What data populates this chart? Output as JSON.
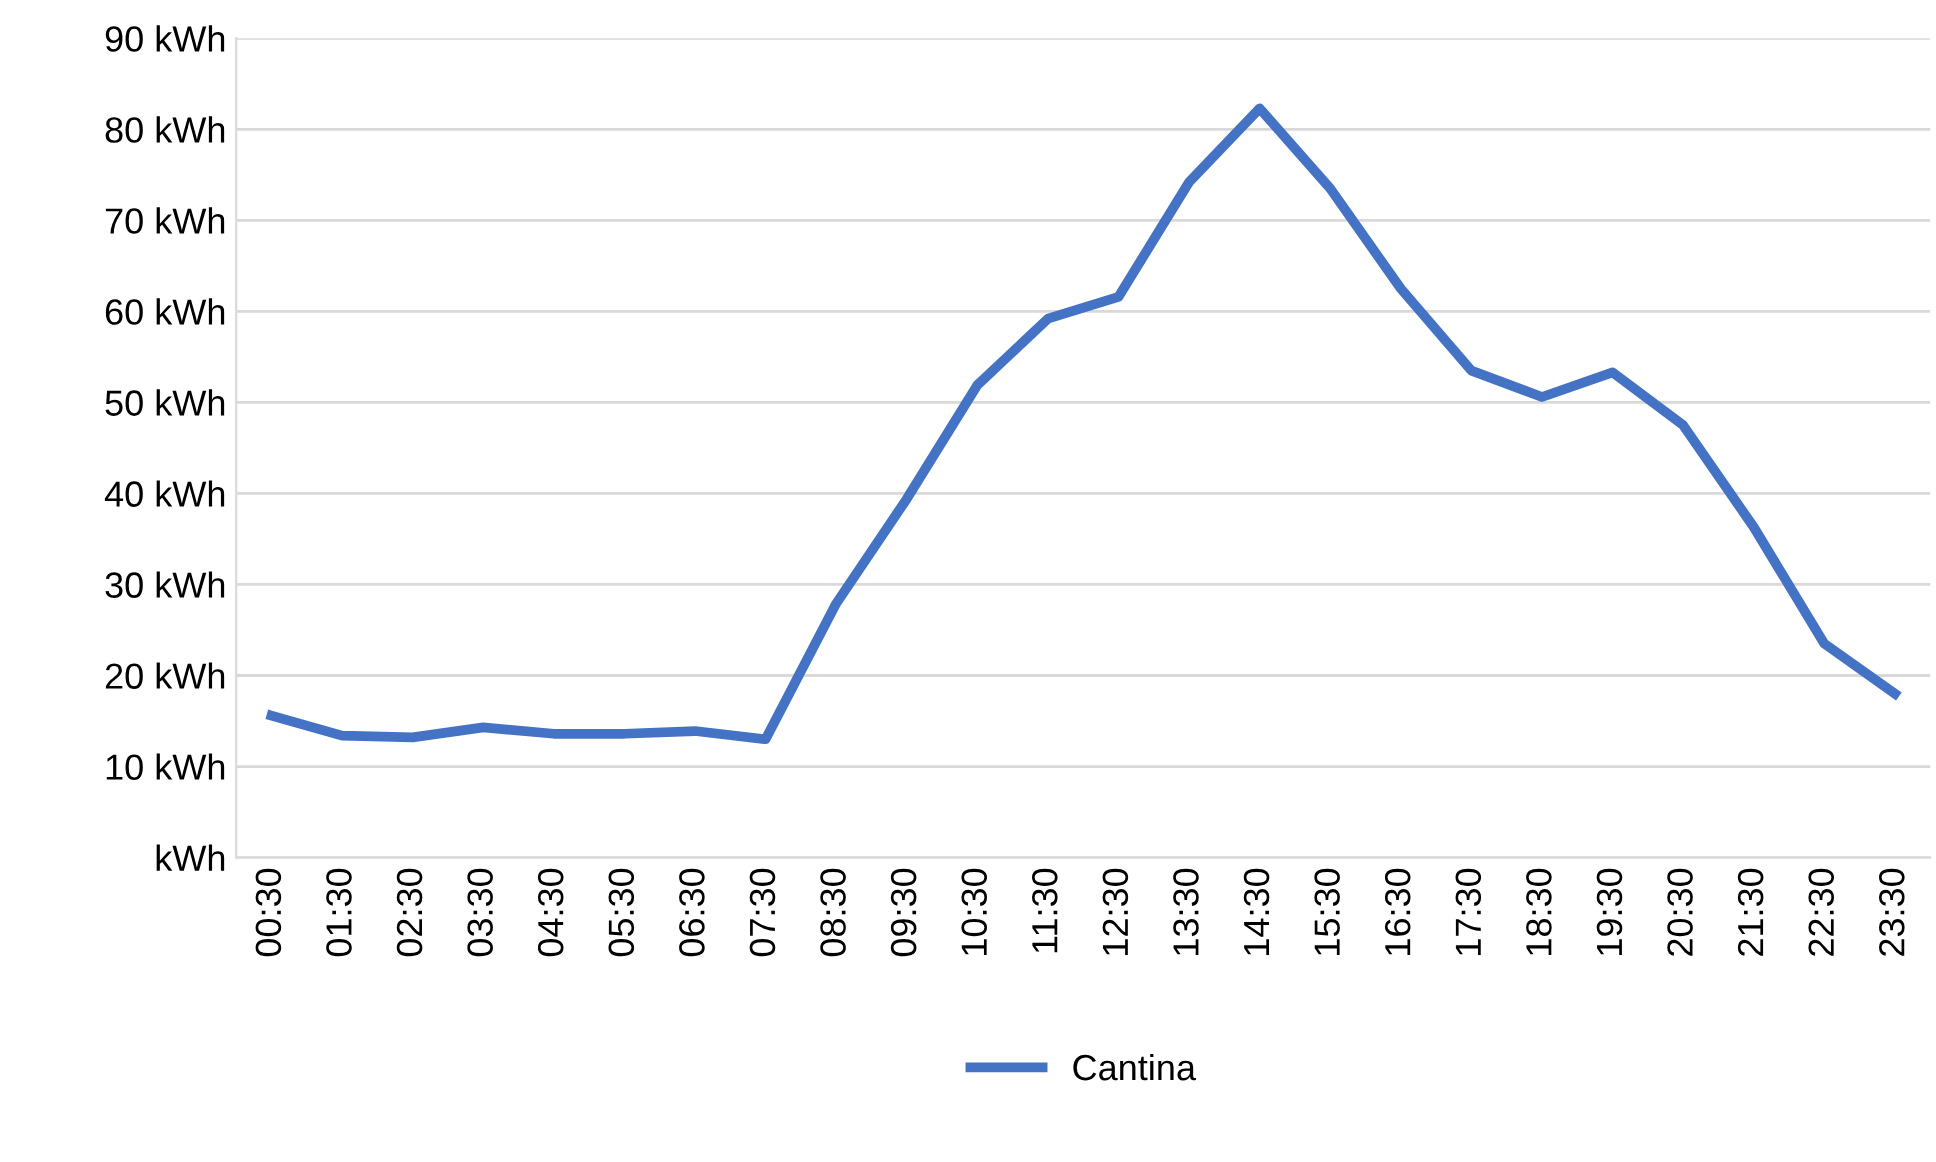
{
  "chart_data": {
    "type": "line",
    "categories": [
      "00:30",
      "01:30",
      "02:30",
      "03:30",
      "04:30",
      "05:30",
      "06:30",
      "07:30",
      "08:30",
      "09:30",
      "10:30",
      "11:30",
      "12:30",
      "13:30",
      "14:30",
      "15:30",
      "16:30",
      "17:30",
      "18:30",
      "19:30",
      "20:30",
      "21:30",
      "22:30",
      "23:30"
    ],
    "series": [
      {
        "name": "Cantina",
        "color": "#4472c4",
        "values": [
          15.6,
          13.4,
          13.2,
          14.3,
          13.6,
          13.6,
          13.9,
          13.0,
          27.9,
          39.4,
          51.9,
          59.2,
          61.6,
          74.2,
          82.3,
          73.5,
          62.5,
          53.5,
          50.6,
          53.3,
          47.5,
          36.3,
          23.5,
          18.0
        ]
      }
    ],
    "ylim": [
      0,
      90
    ],
    "yticks": [
      {
        "value": 0,
        "label": "kWh"
      },
      {
        "value": 10,
        "label": "10 kWh"
      },
      {
        "value": 20,
        "label": "20 kWh"
      },
      {
        "value": 30,
        "label": "30 kWh"
      },
      {
        "value": 40,
        "label": "40 kWh"
      },
      {
        "value": 50,
        "label": "50 kWh"
      },
      {
        "value": 60,
        "label": "60 kWh"
      },
      {
        "value": 70,
        "label": "70 kWh"
      },
      {
        "value": 80,
        "label": "80 kWh"
      },
      {
        "value": 90,
        "label": "90 kWh"
      }
    ],
    "grid": "y",
    "legend": "bottom",
    "marker": "none",
    "line_style": "solid"
  }
}
